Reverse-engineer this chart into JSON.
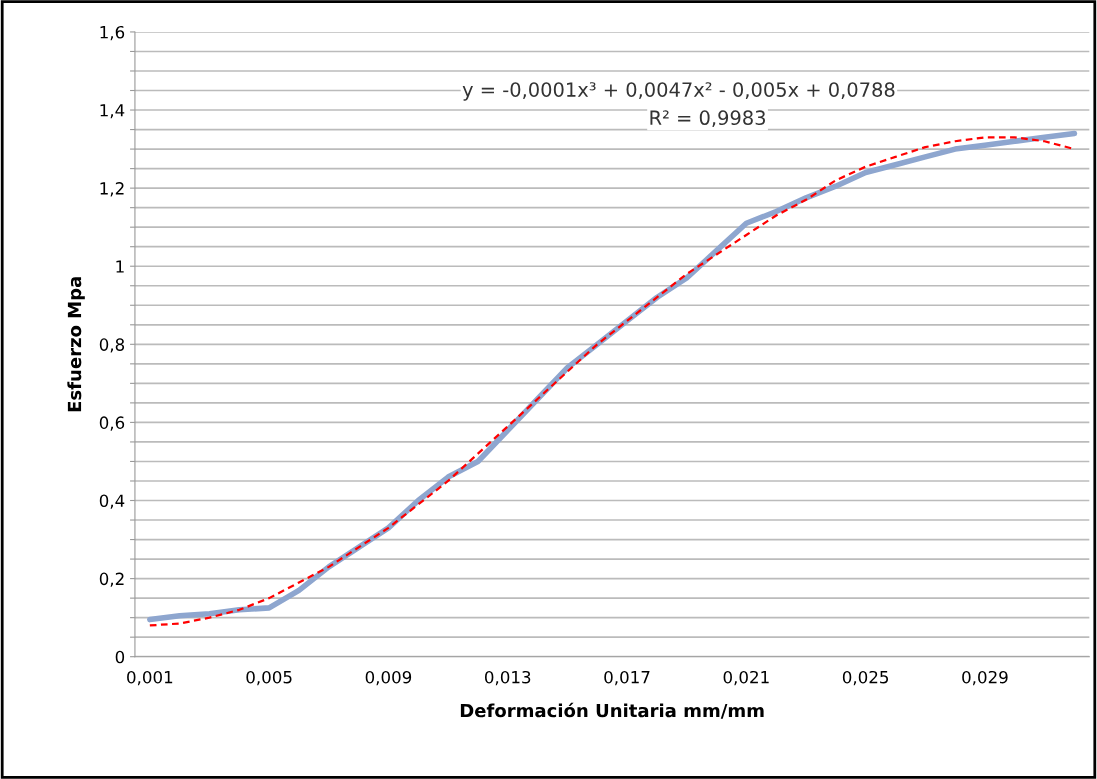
{
  "chart_data": {
    "type": "line",
    "xlabel": "Deformación Unitaria mm/mm",
    "ylabel": "Esfuerzo Mpa",
    "categories": [
      "0,001",
      null,
      null,
      null,
      "0,005",
      null,
      null,
      null,
      "0,009",
      null,
      null,
      null,
      "0,013",
      null,
      null,
      null,
      "0,017",
      null,
      null,
      null,
      "0,021",
      null,
      null,
      null,
      "0,025",
      null,
      null,
      null,
      "0,029",
      null,
      null,
      null
    ],
    "series": [
      {
        "color": "#8ea6cf",
        "line_style": "solid",
        "values": [
          0.095,
          0.105,
          0.11,
          0.12,
          0.125,
          0.17,
          0.23,
          0.28,
          0.33,
          0.4,
          0.46,
          0.5,
          0.58,
          0.66,
          0.74,
          0.8,
          0.86,
          0.92,
          0.97,
          1.04,
          1.11,
          1.14,
          1.175,
          1.205,
          1.24,
          1.26,
          1.28,
          1.3,
          1.31,
          1.32,
          1.33,
          1.34
        ]
      },
      {
        "color": "#ff0000",
        "line_style": "dashed",
        "values": [
          0.08,
          0.085,
          0.1,
          0.12,
          0.15,
          0.19,
          0.23,
          0.28,
          0.33,
          0.39,
          0.45,
          0.52,
          0.59,
          0.66,
          0.73,
          0.8,
          0.86,
          0.92,
          0.98,
          1.03,
          1.08,
          1.13,
          1.17,
          1.22,
          1.255,
          1.28,
          1.305,
          1.32,
          1.33,
          1.33,
          1.32,
          1.3
        ]
      }
    ],
    "ylim": [
      0,
      1.6
    ],
    "yticks": [
      {
        "value": 0,
        "label": "0"
      },
      {
        "value": 0.05,
        "label": null
      },
      {
        "value": 0.1,
        "label": null
      },
      {
        "value": 0.15,
        "label": null
      },
      {
        "value": 0.2,
        "label": "0,2"
      },
      {
        "value": 0.25,
        "label": null
      },
      {
        "value": 0.3,
        "label": null
      },
      {
        "value": 0.35,
        "label": null
      },
      {
        "value": 0.4,
        "label": "0,4"
      },
      {
        "value": 0.45,
        "label": null
      },
      {
        "value": 0.5,
        "label": null
      },
      {
        "value": 0.55,
        "label": null
      },
      {
        "value": 0.6,
        "label": "0,6"
      },
      {
        "value": 0.65,
        "label": null
      },
      {
        "value": 0.7,
        "label": null
      },
      {
        "value": 0.75,
        "label": null
      },
      {
        "value": 0.8,
        "label": "0,8"
      },
      {
        "value": 0.85,
        "label": null
      },
      {
        "value": 0.9,
        "label": null
      },
      {
        "value": 0.95,
        "label": null
      },
      {
        "value": 1,
        "label": "1"
      },
      {
        "value": 1.05,
        "label": null
      },
      {
        "value": 1.1,
        "label": null
      },
      {
        "value": 1.15,
        "label": null
      },
      {
        "value": 1.2,
        "label": "1,2"
      },
      {
        "value": 1.25,
        "label": null
      },
      {
        "value": 1.3,
        "label": null
      },
      {
        "value": 1.35,
        "label": null
      },
      {
        "value": 1.4,
        "label": "1,4"
      },
      {
        "value": 1.45,
        "label": null
      },
      {
        "value": 1.5,
        "label": null
      },
      {
        "value": 1.55,
        "label": null
      },
      {
        "value": 1.6,
        "label": "1,6"
      }
    ],
    "grid": "y",
    "marker": "none",
    "annotations": [
      "y = -0,0001x³ + 0,0047x² - 0,005x + 0,0788",
      "R² = 0,9983"
    ]
  }
}
